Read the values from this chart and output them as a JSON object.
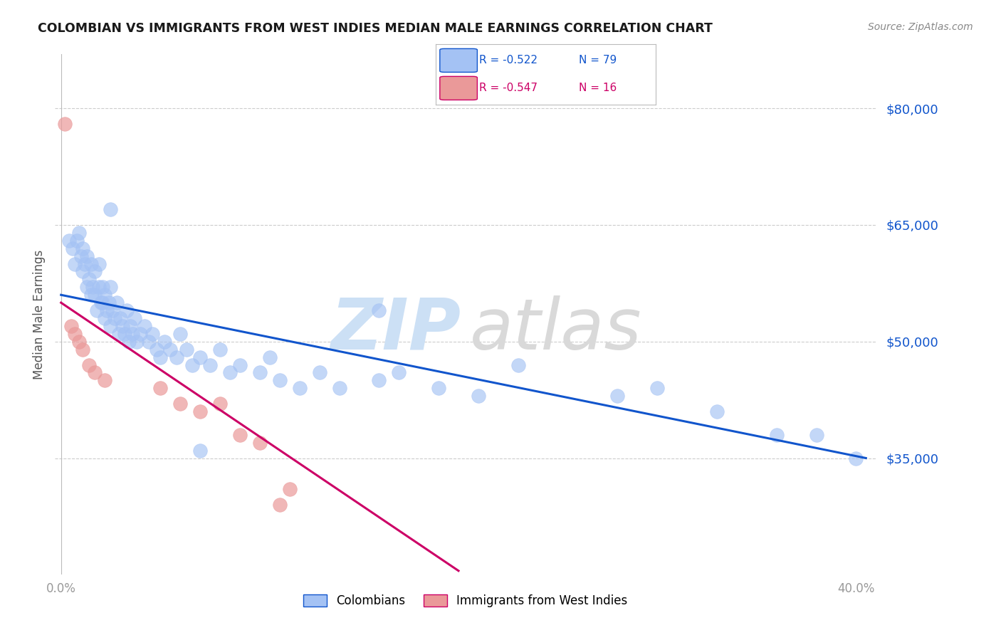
{
  "title": "COLOMBIAN VS IMMIGRANTS FROM WEST INDIES MEDIAN MALE EARNINGS CORRELATION CHART",
  "source": "Source: ZipAtlas.com",
  "ylabel": "Median Male Earnings",
  "y_tick_labels": [
    "$35,000",
    "$50,000",
    "$65,000",
    "$80,000"
  ],
  "y_tick_values": [
    35000,
    50000,
    65000,
    80000
  ],
  "ylim": [
    20000,
    87000
  ],
  "xlim": [
    -0.003,
    0.41
  ],
  "colombians_R": "-0.522",
  "colombians_N": "79",
  "westindies_R": "-0.547",
  "westindies_N": "16",
  "blue_scatter_color": "#a4c2f4",
  "blue_line_color": "#1155cc",
  "pink_scatter_color": "#ea9999",
  "pink_line_color": "#cc0066",
  "legend_blue_fill": "#a4c2f4",
  "legend_pink_fill": "#ea9999",
  "watermark_zip_color": "#cce0f5",
  "watermark_atlas_color": "#d9d9d9",
  "colombians_x": [
    0.004,
    0.006,
    0.007,
    0.008,
    0.009,
    0.01,
    0.011,
    0.011,
    0.012,
    0.013,
    0.013,
    0.014,
    0.015,
    0.015,
    0.016,
    0.017,
    0.017,
    0.018,
    0.019,
    0.019,
    0.02,
    0.021,
    0.021,
    0.022,
    0.022,
    0.023,
    0.024,
    0.025,
    0.025,
    0.026,
    0.027,
    0.028,
    0.029,
    0.03,
    0.031,
    0.032,
    0.033,
    0.034,
    0.035,
    0.036,
    0.037,
    0.038,
    0.04,
    0.042,
    0.044,
    0.046,
    0.048,
    0.05,
    0.052,
    0.055,
    0.058,
    0.06,
    0.063,
    0.066,
    0.07,
    0.075,
    0.08,
    0.085,
    0.09,
    0.1,
    0.105,
    0.11,
    0.12,
    0.13,
    0.14,
    0.16,
    0.17,
    0.19,
    0.21,
    0.23,
    0.16,
    0.28,
    0.3,
    0.33,
    0.36,
    0.38,
    0.4,
    0.025,
    0.07
  ],
  "colombians_y": [
    63000,
    62000,
    60000,
    63000,
    64000,
    61000,
    59000,
    62000,
    60000,
    57000,
    61000,
    58000,
    56000,
    60000,
    57000,
    59000,
    56000,
    54000,
    57000,
    60000,
    55000,
    57000,
    55000,
    53000,
    56000,
    54000,
    55000,
    52000,
    57000,
    54000,
    53000,
    55000,
    51000,
    53000,
    52000,
    51000,
    54000,
    50000,
    52000,
    51000,
    53000,
    50000,
    51000,
    52000,
    50000,
    51000,
    49000,
    48000,
    50000,
    49000,
    48000,
    51000,
    49000,
    47000,
    48000,
    47000,
    49000,
    46000,
    47000,
    46000,
    48000,
    45000,
    44000,
    46000,
    44000,
    45000,
    46000,
    44000,
    43000,
    47000,
    54000,
    43000,
    44000,
    41000,
    38000,
    38000,
    35000,
    67000,
    36000
  ],
  "westindies_x": [
    0.002,
    0.005,
    0.007,
    0.009,
    0.011,
    0.014,
    0.017,
    0.022,
    0.05,
    0.06,
    0.07,
    0.08,
    0.09,
    0.1,
    0.11,
    0.115
  ],
  "westindies_y": [
    78000,
    52000,
    51000,
    50000,
    49000,
    47000,
    46000,
    45000,
    44000,
    42000,
    41000,
    42000,
    38000,
    37000,
    29000,
    31000
  ],
  "blue_trendline_x0": 0.0,
  "blue_trendline_x1": 0.405,
  "blue_trendline_y0": 56000,
  "blue_trendline_y1": 35000,
  "pink_trendline_x0": 0.0,
  "pink_trendline_x1": 0.2,
  "pink_trendline_y0": 55000,
  "pink_trendline_y1": 20500
}
